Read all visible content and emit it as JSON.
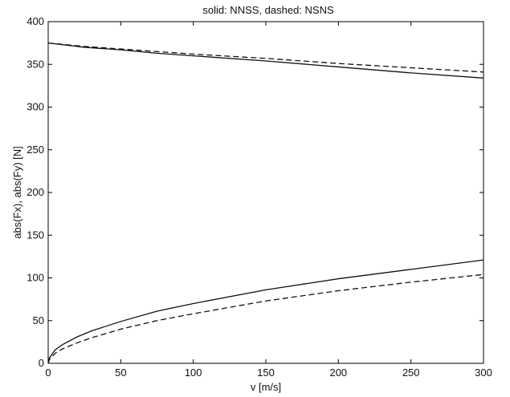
{
  "chart_data": {
    "type": "line",
    "title": "solid: NNSS, dashed: NSNS",
    "xlabel": "v [m/s]",
    "ylabel": "abs(Fx), abs(Fy) [N]",
    "xlim": [
      0,
      300
    ],
    "ylim": [
      0,
      400
    ],
    "xticks": [
      0,
      50,
      100,
      150,
      200,
      250,
      300
    ],
    "yticks": [
      0,
      50,
      100,
      150,
      200,
      250,
      300,
      350,
      400
    ],
    "grid": false,
    "series": [
      {
        "style": "solid",
        "x": [
          0,
          25,
          50,
          75,
          100,
          150,
          200,
          250,
          300
        ],
        "y": [
          375,
          370,
          367,
          363,
          360,
          354,
          347,
          340,
          334
        ]
      },
      {
        "style": "dashed",
        "x": [
          0,
          25,
          50,
          75,
          100,
          150,
          200,
          250,
          300
        ],
        "y": [
          375,
          371,
          368,
          365,
          362,
          357,
          351,
          346,
          341
        ]
      },
      {
        "style": "solid",
        "x": [
          0,
          1,
          5,
          10,
          20,
          30,
          50,
          75,
          100,
          150,
          200,
          250,
          300
        ],
        "y": [
          0,
          7,
          16,
          22,
          31,
          38,
          49,
          61,
          70,
          86,
          99,
          110,
          121
        ]
      },
      {
        "style": "dashed",
        "x": [
          0,
          1,
          5,
          10,
          20,
          30,
          50,
          75,
          100,
          150,
          200,
          250,
          300
        ],
        "y": [
          0,
          5,
          12,
          17,
          24,
          30,
          40,
          50,
          58,
          73,
          85,
          95,
          104
        ]
      }
    ]
  }
}
